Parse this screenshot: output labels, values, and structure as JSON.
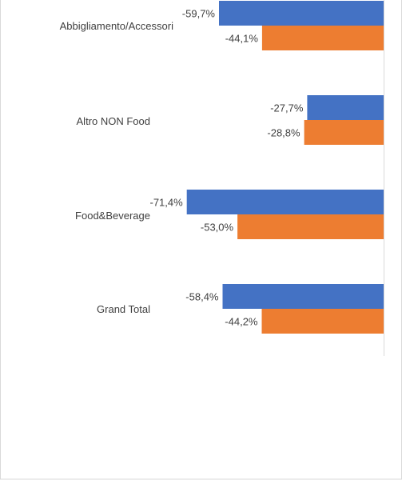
{
  "chart_data": {
    "type": "bar",
    "orientation": "horizontal",
    "categories": [
      "Abbigliamento/Accessori",
      "Altro NON Food",
      "Food&Beverage",
      "Grand Total"
    ],
    "series": [
      {
        "values": [
          -59.7,
          -27.7,
          -71.4,
          -58.4
        ],
        "labels": [
          "-59,7%",
          "-27,7%",
          "-71,4%",
          "-58,4%"
        ],
        "color": "#4472C4"
      },
      {
        "values": [
          -44.1,
          -28.8,
          -53.0,
          -44.2
        ],
        "labels": [
          "-44,1%",
          "-28,8%",
          "-53,0%",
          "-44,2%"
        ],
        "color": "#ED7D31"
      }
    ],
    "value_unit": "%",
    "axis_line_color": "#D9D9D9",
    "grid": false
  }
}
